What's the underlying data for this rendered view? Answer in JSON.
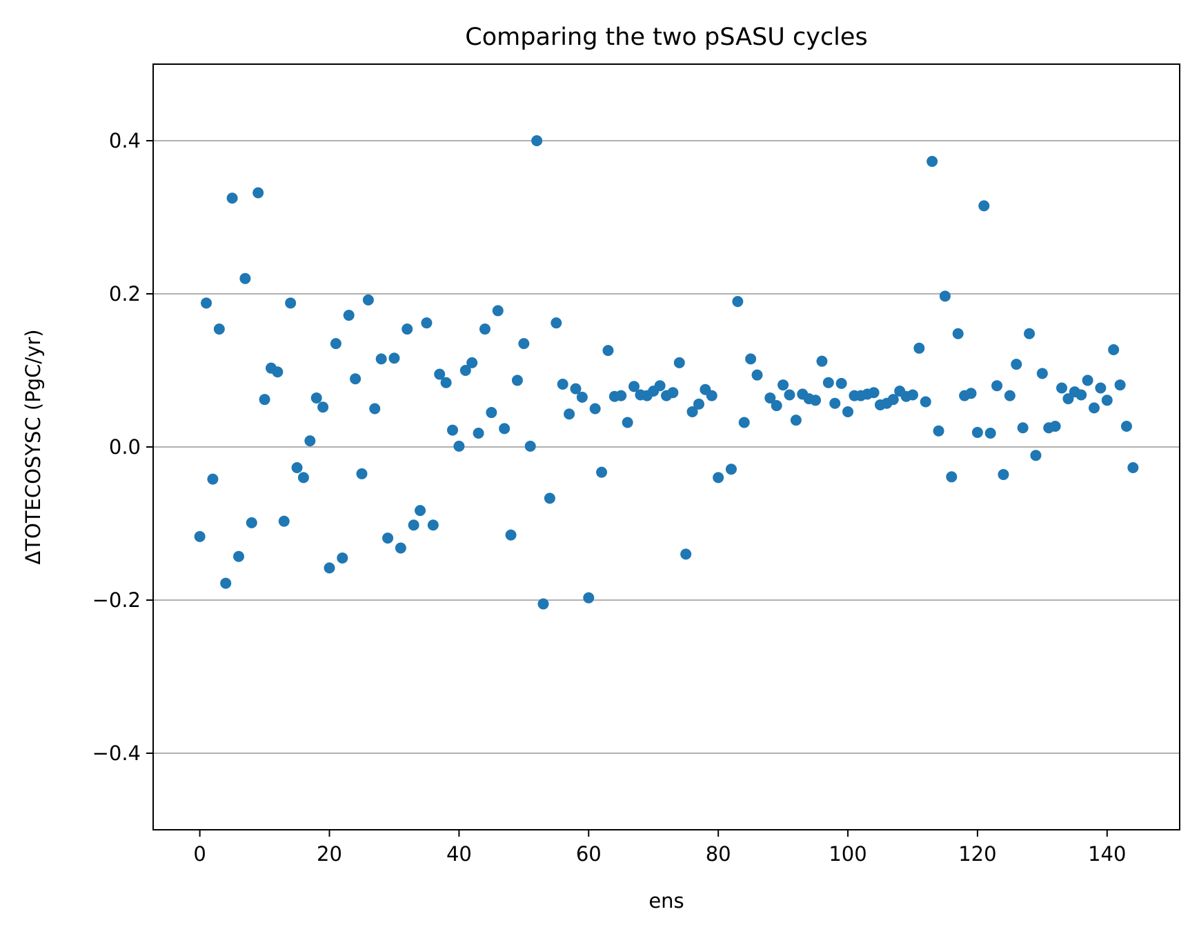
{
  "chart_data": {
    "type": "scatter",
    "title": "Comparing the two pSASU cycles",
    "xlabel": "ens",
    "ylabel": "ΔTOTECOSYSC (PgC/yr)",
    "xlim": [
      -7.2,
      151.2
    ],
    "ylim": [
      -0.5,
      0.5
    ],
    "xticks": [
      0,
      20,
      40,
      60,
      80,
      100,
      120,
      140
    ],
    "yticks": [
      -0.4,
      -0.2,
      0.0,
      0.2,
      0.4
    ],
    "xtick_labels": [
      "0",
      "20",
      "40",
      "60",
      "80",
      "100",
      "120",
      "140"
    ],
    "ytick_labels": [
      "−0.4",
      "−0.2",
      "0.0",
      "0.2",
      "0.4"
    ],
    "grid": "y",
    "marker_color": "#1f77b4",
    "series": [
      {
        "x": [
          0,
          1,
          2,
          3,
          4,
          5,
          6,
          7,
          8,
          9,
          10,
          11,
          12,
          13,
          14,
          15,
          16,
          17,
          18,
          19,
          20,
          21,
          22,
          23,
          24,
          25,
          26,
          27,
          28,
          29,
          30,
          31,
          32,
          33,
          34,
          35,
          36,
          37,
          38,
          39,
          40,
          41,
          42,
          43,
          44,
          45,
          46,
          47,
          48,
          49,
          50,
          51,
          52,
          53,
          54,
          55,
          56,
          57,
          58,
          59,
          60,
          61,
          62,
          63,
          64,
          65,
          66,
          67,
          68,
          69,
          70,
          71,
          72,
          73,
          74,
          75,
          76,
          77,
          78,
          79,
          80,
          82,
          83,
          84,
          85,
          86,
          88,
          89,
          90,
          91,
          92,
          93,
          94,
          95,
          96,
          97,
          98,
          99,
          100,
          101,
          102,
          103,
          104,
          105,
          106,
          107,
          108,
          109,
          110,
          111,
          112,
          113,
          114,
          115,
          116,
          117,
          118,
          119,
          120,
          121,
          122,
          123,
          124,
          125,
          126,
          127,
          128,
          129,
          130,
          131,
          132,
          133,
          134,
          135,
          136,
          137,
          138,
          139,
          140,
          141,
          142,
          143,
          144
        ],
        "y": [
          -0.117,
          0.188,
          -0.042,
          0.154,
          -0.178,
          0.325,
          -0.143,
          0.22,
          -0.099,
          0.332,
          0.062,
          0.103,
          0.098,
          -0.097,
          0.188,
          -0.027,
          -0.04,
          0.008,
          0.064,
          0.052,
          -0.158,
          0.135,
          -0.145,
          0.172,
          0.089,
          -0.035,
          0.192,
          0.05,
          0.115,
          -0.119,
          0.116,
          -0.132,
          0.154,
          -0.102,
          -0.083,
          0.162,
          -0.102,
          0.095,
          0.084,
          0.022,
          0.001,
          0.1,
          0.11,
          0.018,
          0.154,
          0.045,
          0.178,
          0.024,
          -0.115,
          0.087,
          0.135,
          0.001,
          0.4,
          -0.205,
          -0.067,
          0.162,
          0.082,
          0.043,
          0.076,
          0.065,
          -0.197,
          0.05,
          -0.033,
          0.126,
          0.066,
          0.067,
          0.032,
          0.079,
          0.068,
          0.067,
          0.073,
          0.08,
          0.067,
          0.071,
          0.11,
          -0.14,
          0.046,
          0.056,
          0.075,
          0.067,
          -0.04,
          -0.029,
          0.19,
          0.032,
          0.115,
          0.094,
          0.064,
          0.054,
          0.081,
          0.068,
          0.035,
          0.069,
          0.063,
          0.061,
          0.112,
          0.084,
          0.057,
          0.083,
          0.046,
          0.067,
          0.067,
          0.069,
          0.071,
          0.055,
          0.057,
          0.062,
          0.073,
          0.066,
          0.068,
          0.129,
          0.059,
          0.373,
          0.021,
          0.197,
          -0.039,
          0.148,
          0.067,
          0.07,
          0.019,
          0.315,
          0.018,
          0.08,
          -0.036,
          0.067,
          0.108,
          0.025,
          0.148,
          -0.011,
          0.096,
          0.025,
          0.027,
          0.077,
          0.063,
          0.072,
          0.068,
          0.087,
          0.051,
          0.077,
          0.061,
          0.127,
          0.081,
          0.027,
          -0.027
        ]
      }
    ]
  }
}
